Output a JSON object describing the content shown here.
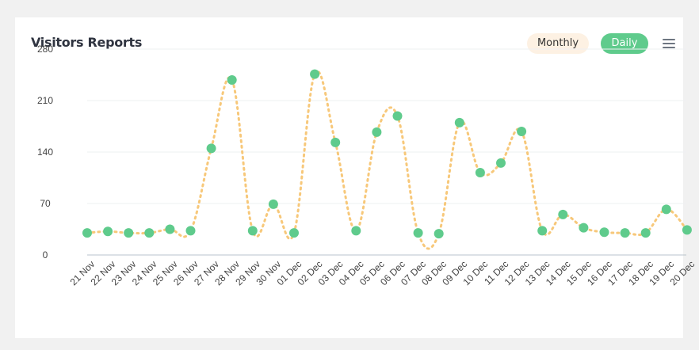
{
  "card": {
    "title": "Visitors Reports",
    "buttons": {
      "monthly": "Monthly",
      "daily": "Daily"
    },
    "menu_icon": "hamburger-menu-icon"
  },
  "colors": {
    "line": "#f7c87a",
    "marker": "#5fcb8c",
    "monthly_bg": "#fdf1e3",
    "daily_bg": "#5fcb8c"
  },
  "chart_data": {
    "type": "line",
    "categories": [
      "21 Nov",
      "22 Nov",
      "23 Nov",
      "24 Nov",
      "25 Nov",
      "26 Nov",
      "27 Nov",
      "28 Nov",
      "29 Nov",
      "30 Nov",
      "01 Dec",
      "02 Dec",
      "03 Dec",
      "04 Dec",
      "05 Dec",
      "06 Dec",
      "07 Dec",
      "08 Dec",
      "09 Dec",
      "10 Dec",
      "11 Dec",
      "12 Dec",
      "13 Dec",
      "14 Dec",
      "15 Dec",
      "16 Dec",
      "17 Dec",
      "18 Dec",
      "19 Dec",
      "20 Dec"
    ],
    "series": [
      {
        "values": [
          30,
          32,
          30,
          30,
          35,
          33,
          145,
          238,
          33,
          69,
          30,
          246,
          153,
          33,
          167,
          189,
          30,
          29,
          180,
          112,
          125,
          168,
          33,
          55,
          37,
          31,
          30,
          30,
          62,
          34
        ]
      }
    ],
    "yticks": [
      "0",
      "70",
      "140",
      "210",
      "280"
    ],
    "ylim": [
      0,
      280
    ],
    "grid": true,
    "line_style": "dotted"
  }
}
